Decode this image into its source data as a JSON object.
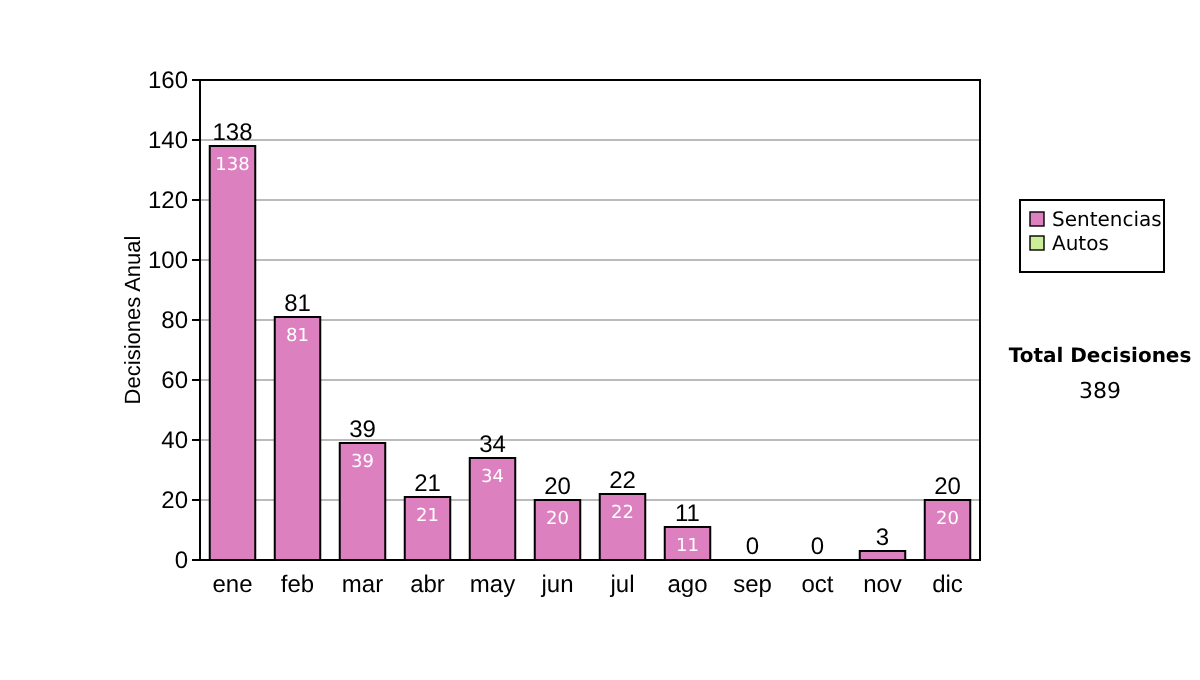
{
  "chart_data": {
    "type": "bar",
    "stacked": true,
    "ylabel": "Decisiones Anual",
    "categories": [
      "ene",
      "feb",
      "mar",
      "abr",
      "may",
      "jun",
      "jul",
      "ago",
      "sep",
      "oct",
      "nov",
      "dic"
    ],
    "series": [
      {
        "name": "Sentencias",
        "color": "#dd80c0",
        "values": [
          138,
          81,
          39,
          21,
          34,
          20,
          22,
          11,
          0,
          0,
          3,
          20
        ],
        "value_labels": [
          "138",
          "81",
          "39",
          "21",
          "34",
          "20",
          "22",
          "11",
          null,
          null,
          null,
          "20"
        ]
      },
      {
        "name": "Autos",
        "color": "#ccee99",
        "values": [
          0,
          0,
          0,
          0,
          0,
          0,
          0,
          0,
          0,
          0,
          0,
          0
        ]
      }
    ],
    "totals": [
      "138",
      "81",
      "39",
      "21",
      "34",
      "20",
      "22",
      "11",
      "0",
      "0",
      "3",
      "20"
    ],
    "ylim": [
      0,
      160
    ],
    "yticks": [
      0,
      20,
      40,
      60,
      80,
      100,
      120,
      140,
      160
    ],
    "grid": "y",
    "legend": "right",
    "annotations": [
      "Total Decisiones",
      "389"
    ]
  }
}
